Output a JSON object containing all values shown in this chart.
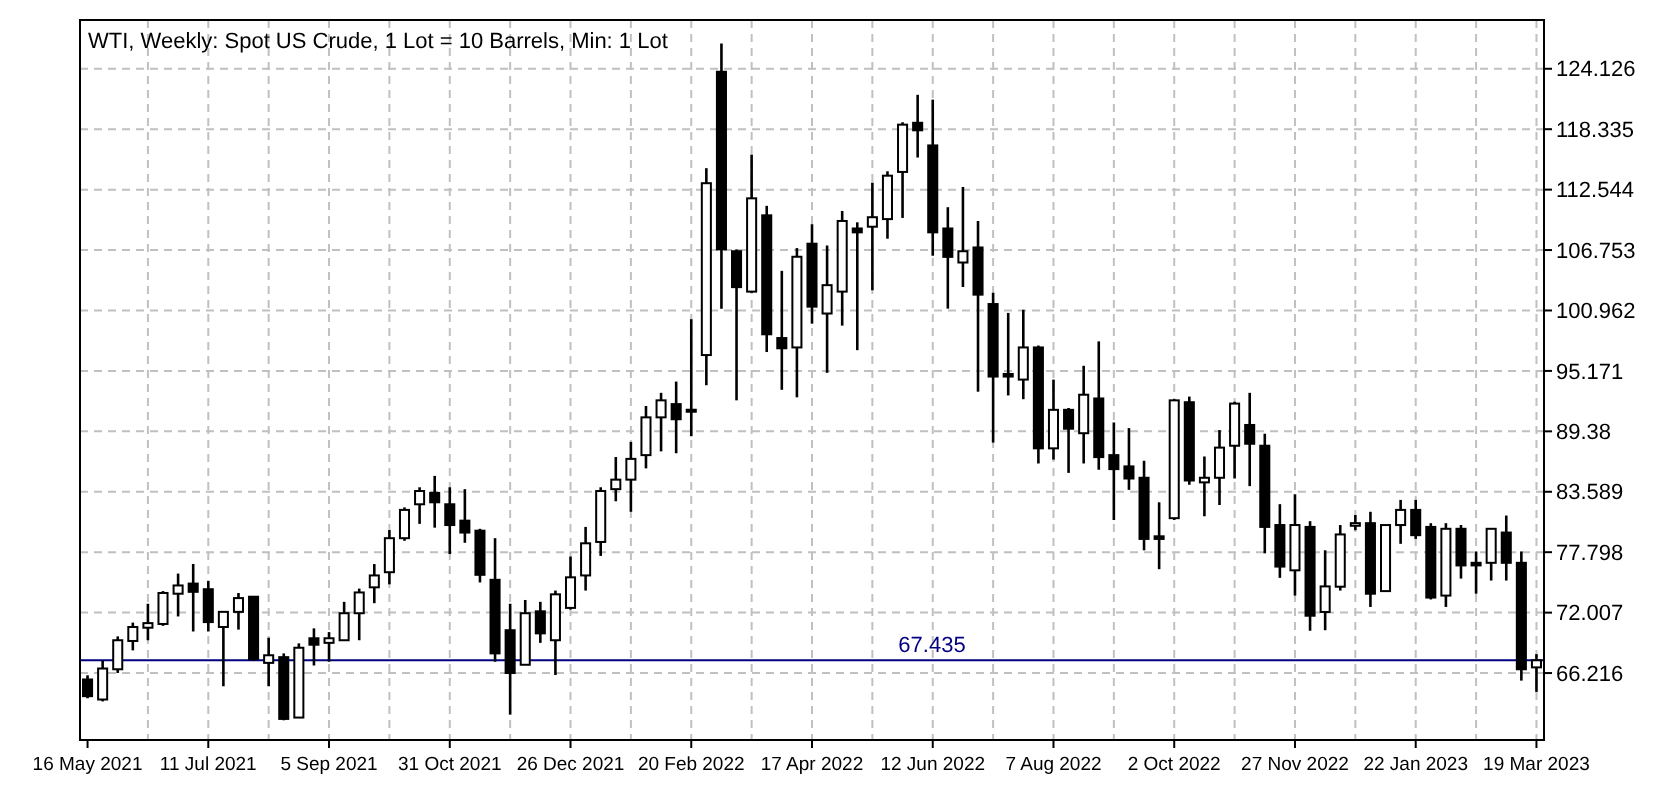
{
  "chart_data": {
    "type": "candlestick",
    "title": "WTI, Weekly:  Spot US Crude, 1 Lot = 10 Barrels, Min: 1 Lot",
    "categories": [
      "16 May 2021",
      null,
      null,
      null,
      null,
      null,
      null,
      null,
      "11 Jul 2021",
      null,
      null,
      null,
      null,
      null,
      null,
      null,
      "5 Sep 2021",
      null,
      null,
      null,
      null,
      null,
      null,
      null,
      "31 Oct 2021",
      null,
      null,
      null,
      null,
      null,
      null,
      null,
      "26 Dec 2021",
      null,
      null,
      null,
      null,
      null,
      null,
      null,
      "20 Feb 2022",
      null,
      null,
      null,
      null,
      null,
      null,
      null,
      "17 Apr 2022",
      null,
      null,
      null,
      null,
      null,
      null,
      null,
      "12 Jun 2022",
      null,
      null,
      null,
      null,
      null,
      null,
      null,
      "7 Aug 2022",
      null,
      null,
      null,
      null,
      null,
      null,
      null,
      "2 Oct 2022",
      null,
      null,
      null,
      null,
      null,
      null,
      null,
      "27 Nov 2022",
      null,
      null,
      null,
      null,
      null,
      null,
      null,
      "22 Jan 2023",
      null,
      null,
      null,
      null,
      null,
      null,
      null,
      "19 Mar 2023"
    ],
    "ohlc": [
      [
        65.6,
        66.0,
        63.8,
        64.0
      ],
      [
        63.68,
        67.43,
        63.5,
        66.65
      ],
      [
        66.58,
        69.73,
        66.22,
        69.36
      ],
      [
        69.29,
        71.05,
        68.39,
        70.63
      ],
      [
        70.56,
        72.86,
        69.36,
        71.0
      ],
      [
        70.92,
        74.07,
        70.74,
        73.89
      ],
      [
        73.82,
        75.75,
        71.64,
        74.61
      ],
      [
        74.79,
        76.67,
        70.2,
        74.0
      ],
      [
        74.25,
        75.03,
        70.2,
        71.1
      ],
      [
        70.63,
        72.08,
        64.95,
        72.08
      ],
      [
        72.08,
        73.89,
        70.38,
        73.4
      ],
      [
        73.53,
        73.53,
        67.38,
        67.56
      ],
      [
        67.19,
        69.6,
        64.95,
        67.92
      ],
      [
        67.74,
        68.1,
        61.69,
        61.82
      ],
      [
        61.95,
        69.06,
        61.95,
        68.64
      ],
      [
        69.55,
        70.5,
        66.94,
        68.93
      ],
      [
        69.11,
        70.14,
        67.3,
        69.55
      ],
      [
        69.36,
        73.04,
        69.36,
        71.95
      ],
      [
        71.95,
        74.31,
        69.36,
        73.94
      ],
      [
        74.43,
        76.66,
        72.91,
        75.57
      ],
      [
        75.88,
        79.92,
        74.72,
        79.14
      ],
      [
        79.14,
        82.09,
        78.89,
        81.85
      ],
      [
        82.39,
        84.02,
        80.51,
        83.66
      ],
      [
        83.48,
        85.11,
        80.15,
        82.58
      ],
      [
        82.39,
        84.02,
        77.62,
        80.4
      ],
      [
        80.82,
        83.84,
        78.7,
        79.68
      ],
      [
        79.86,
        80.04,
        74.9,
        75.63
      ],
      [
        75.15,
        79.14,
        67.3,
        68.1
      ],
      [
        70.32,
        72.86,
        62.23,
        66.22
      ],
      [
        67.01,
        73.22,
        67.01,
        71.95
      ],
      [
        72.13,
        73.04,
        69.11,
        70.02
      ],
      [
        69.36,
        74.12,
        66.03,
        73.76
      ],
      [
        72.46,
        77.38,
        72.3,
        75.39
      ],
      [
        75.57,
        80.22,
        74.12,
        78.65
      ],
      [
        78.78,
        84.02,
        77.44,
        83.66
      ],
      [
        83.84,
        86.92,
        82.68,
        84.75
      ],
      [
        84.75,
        88.37,
        81.67,
        86.74
      ],
      [
        87.1,
        91.81,
        85.83,
        90.72
      ],
      [
        90.72,
        93.07,
        87.46,
        92.35
      ],
      [
        91.99,
        94.15,
        87.28,
        90.54
      ],
      [
        91.45,
        100.13,
        88.91,
        91.26
      ],
      [
        96.69,
        114.6,
        93.8,
        113.16
      ],
      [
        123.84,
        126.55,
        101.14,
        106.82
      ],
      [
        106.64,
        106.82,
        92.35,
        103.2
      ],
      [
        102.77,
        115.9,
        102.66,
        111.71
      ],
      [
        110.08,
        110.99,
        96.98,
        98.68
      ],
      [
        98.32,
        104.76,
        93.36,
        97.34
      ],
      [
        97.42,
        106.94,
        92.64,
        106.11
      ],
      [
        107.36,
        109.23,
        99.7,
        101.33
      ],
      [
        100.67,
        107.19,
        94.99,
        103.39
      ],
      [
        102.77,
        110.5,
        99.51,
        109.54
      ],
      [
        108.82,
        109.41,
        97.16,
        108.45
      ],
      [
        108.99,
        113.21,
        102.9,
        109.9
      ],
      [
        109.72,
        114.3,
        107.84,
        113.88
      ],
      [
        114.24,
        119.0,
        109.83,
        118.77
      ],
      [
        118.95,
        121.63,
        115.62,
        118.23
      ],
      [
        116.78,
        121.17,
        106.21,
        108.45
      ],
      [
        108.82,
        110.86,
        101.14,
        106.1
      ],
      [
        105.56,
        112.8,
        103.21,
        106.64
      ],
      [
        107.0,
        109.54,
        93.18,
        102.48
      ],
      [
        101.58,
        102.66,
        88.3,
        94.63
      ],
      [
        94.88,
        100.73,
        92.82,
        94.63
      ],
      [
        94.34,
        101.03,
        92.46,
        97.42
      ],
      [
        97.42,
        97.6,
        86.3,
        87.75
      ],
      [
        87.75,
        94.34,
        86.67,
        91.44
      ],
      [
        91.44,
        91.62,
        85.4,
        89.63
      ],
      [
        89.2,
        95.66,
        86.3,
        92.89
      ],
      [
        92.53,
        98.0,
        85.7,
        86.91
      ],
      [
        87.1,
        90.23,
        80.88,
        85.76
      ],
      [
        86.02,
        89.69,
        83.77,
        84.86
      ],
      [
        84.93,
        86.56,
        77.98,
        79.07
      ],
      [
        79.32,
        82.58,
        76.17,
        79.07
      ],
      [
        81.06,
        92.46,
        80.88,
        92.35
      ],
      [
        92.17,
        92.71,
        84.26,
        84.67
      ],
      [
        84.49,
        86.97,
        81.24,
        84.93
      ],
      [
        84.93,
        89.5,
        82.32,
        87.82
      ],
      [
        88.0,
        92.22,
        84.86,
        92.04
      ],
      [
        89.99,
        93.07,
        84.13,
        88.19
      ],
      [
        88.0,
        89.15,
        77.69,
        80.22
      ],
      [
        80.4,
        82.4,
        75.34,
        76.42
      ],
      [
        76.06,
        83.35,
        73.64,
        80.4
      ],
      [
        80.22,
        80.77,
        70.27,
        71.71
      ],
      [
        72.07,
        77.98,
        70.32,
        74.52
      ],
      [
        74.49,
        80.4,
        74.12,
        79.5
      ],
      [
        80.33,
        81.36,
        79.9,
        80.58
      ],
      [
        80.58,
        81.67,
        72.55,
        73.82
      ],
      [
        74.07,
        80.4,
        74.07,
        80.4
      ],
      [
        80.4,
        82.81,
        78.6,
        81.85
      ],
      [
        81.85,
        82.81,
        79.07,
        79.43
      ],
      [
        80.22,
        80.58,
        73.27,
        73.45
      ],
      [
        73.64,
        80.58,
        72.55,
        80.04
      ],
      [
        80.04,
        80.4,
        75.27,
        76.53
      ],
      [
        76.78,
        77.87,
        73.82,
        76.53
      ],
      [
        76.78,
        80.04,
        75.08,
        80.04
      ],
      [
        79.68,
        81.31,
        75.08,
        76.78
      ],
      [
        76.78,
        77.87,
        65.49,
        66.58
      ],
      [
        66.76,
        68.03,
        64.41,
        67.44
      ]
    ],
    "color": "#000000",
    "ylim": [
      59.8,
      128.8
    ],
    "yticks": [
      66.216,
      72.007,
      77.798,
      83.589,
      89.38,
      95.171,
      100.962,
      106.753,
      112.544,
      118.335,
      124.126
    ],
    "ref_lines": [
      {
        "axis": "y",
        "value": 67.435,
        "label": "67.435",
        "color": "#000080"
      }
    ],
    "grid": true
  }
}
